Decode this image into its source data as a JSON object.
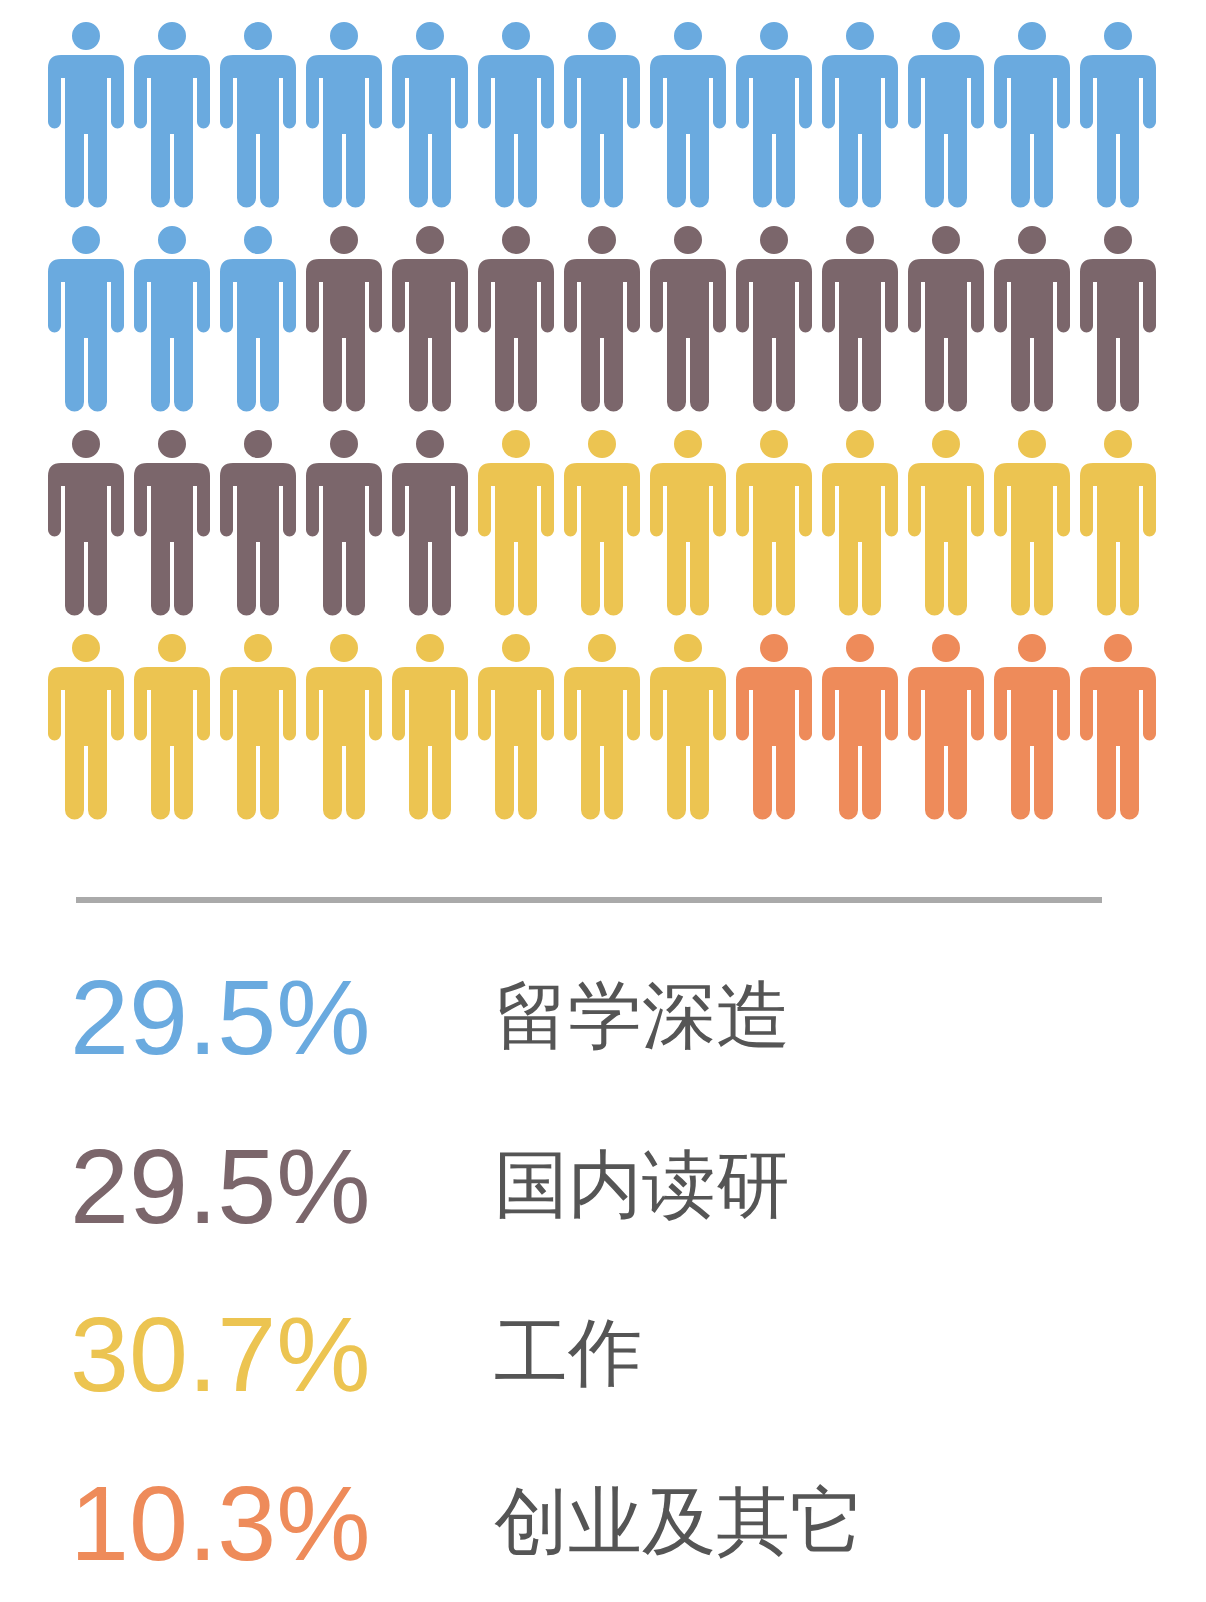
{
  "chart_data": {
    "type": "other",
    "categories": [
      "留学深造",
      "国内读研",
      "工作",
      "创业及其它"
    ],
    "values": [
      29.5,
      29.5,
      30.7,
      10.3
    ],
    "value_labels": [
      "29.5%",
      "29.5%",
      "30.7%",
      "10.3%"
    ],
    "colors": [
      "#6aaadf",
      "#7b666b",
      "#ecc451",
      "#ee8b5a"
    ]
  }
}
